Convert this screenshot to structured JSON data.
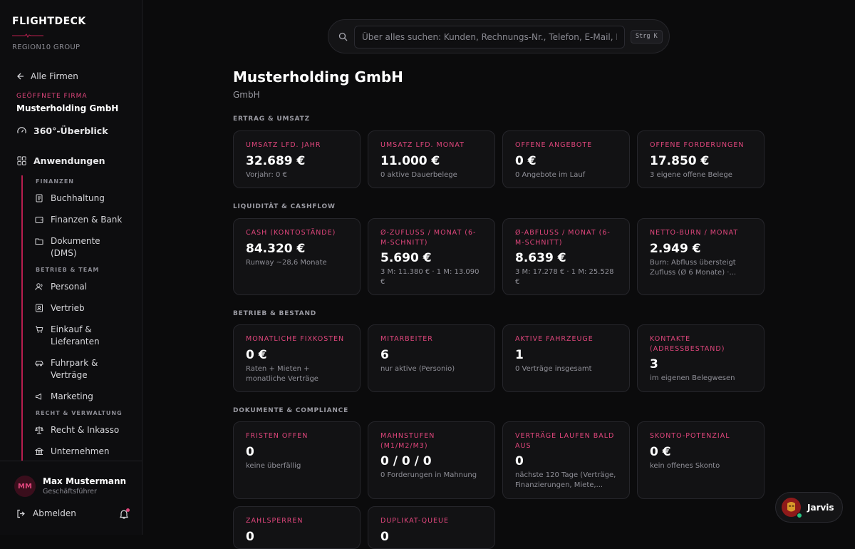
{
  "brand": {
    "name": "FLIGHTDECK",
    "sub": "REGION10 GROUP"
  },
  "sidebar": {
    "back": "Alle Firmen",
    "opened_label": "GEÖFFNETE FIRMA",
    "opened_name": "Musterholding GmbH",
    "overview": "360°-Überblick",
    "apps": "Anwendungen",
    "groups": [
      {
        "head": "FINANZEN",
        "items": [
          "Buchhaltung",
          "Finanzen & Bank",
          "Dokumente (DMS)"
        ]
      },
      {
        "head": "BETRIEB & TEAM",
        "items": [
          "Personal",
          "Vertrieb",
          "Einkauf & Lieferanten",
          "Fuhrpark & Verträge",
          "Marketing"
        ]
      },
      {
        "head": "RECHT & VERWALTUNG",
        "items": [
          "Recht & Inkasso",
          "Unternehmen"
        ]
      }
    ],
    "user": {
      "initials": "MM",
      "name": "Max Mustermann",
      "role": "Geschäftsführer"
    },
    "logout": "Abmelden"
  },
  "search": {
    "placeholder": "Über alles suchen: Kunden, Rechnungs-Nr., Telefon, E-Mail, Mo",
    "shortcut": "Strg K"
  },
  "main": {
    "title": "Musterholding GmbH",
    "subtitle": "GmbH",
    "sections": [
      {
        "title": "ERTRAG & UMSATZ",
        "cards": [
          {
            "label": "Umsatz lfd. Jahr",
            "value": "32.689 €",
            "note": "Vorjahr: 0 €"
          },
          {
            "label": "Umsatz lfd. Monat",
            "value": "11.000 €",
            "note": "0 aktive Dauerbelege"
          },
          {
            "label": "Offene Angebote",
            "value": "0 €",
            "note": "0 Angebote im Lauf"
          },
          {
            "label": "Offene Forderungen",
            "value": "17.850 €",
            "note": "3 eigene offene Belege"
          }
        ]
      },
      {
        "title": "LIQUIDITÄT & CASHFLOW",
        "cards": [
          {
            "label": "Cash (Kontostände)",
            "value": "84.320 €",
            "note": "Runway ~28,6 Monate"
          },
          {
            "label": "Ø-Zufluss / Monat (6-M-Schnitt)",
            "value": "5.690 €",
            "note": "3 M: 11.380 € · 1 M: 13.090 €"
          },
          {
            "label": "Ø-Abfluss / Monat (6-M-Schnitt)",
            "value": "8.639 €",
            "note": "3 M: 17.278 € · 1 M: 25.528 €"
          },
          {
            "label": "Netto-Burn / Monat",
            "value": "2.949 €",
            "note": "Burn: Abfluss übersteigt Zufluss (Ø 6 Monate) ·..."
          }
        ]
      },
      {
        "title": "BETRIEB & BESTAND",
        "cards": [
          {
            "label": "Monatliche Fixkosten",
            "value": "0 €",
            "note": "Raten + Mieten + monatliche Verträge"
          },
          {
            "label": "Mitarbeiter",
            "value": "6",
            "note": "nur aktive (Personio)"
          },
          {
            "label": "Aktive Fahrzeuge",
            "value": "1",
            "note": "0 Verträge insgesamt"
          },
          {
            "label": "Kontakte (Adressbestand)",
            "value": "3",
            "note": "im eigenen Belegwesen"
          }
        ]
      },
      {
        "title": "DOKUMENTE & COMPLIANCE",
        "cards": [
          {
            "label": "Fristen offen",
            "value": "0",
            "note": "keine überfällig"
          },
          {
            "label": "Mahnstufen (M1/M2/M3)",
            "value": "0 / 0 / 0",
            "note": "0 Forderungen in Mahnung"
          },
          {
            "label": "Verträge laufen bald aus",
            "value": "0",
            "note": "nächste 120 Tage (Verträge, Finanzierungen, Miete,..."
          },
          {
            "label": "Skonto-Potenzial",
            "value": "0 €",
            "note": "kein offenes Skonto"
          },
          {
            "label": "Zahlsperren",
            "value": "0",
            "note": ""
          },
          {
            "label": "Duplikat-Queue",
            "value": "0",
            "note": ""
          }
        ]
      }
    ]
  },
  "assistant": {
    "name": "Jarvis"
  },
  "colors": {
    "accent": "#e0467c",
    "accent_dark": "#b81e4e",
    "background": "#0b0b0c",
    "card": "#121214"
  },
  "icons": [
    "arrow-left-icon",
    "gauge-icon",
    "grid-icon",
    "receipt-icon",
    "wallet-icon",
    "folder-icon",
    "users-icon",
    "id-card-icon",
    "cart-icon",
    "car-icon",
    "megaphone-icon",
    "scale-icon",
    "bank-icon",
    "logout-icon",
    "bell-icon",
    "search-icon"
  ]
}
